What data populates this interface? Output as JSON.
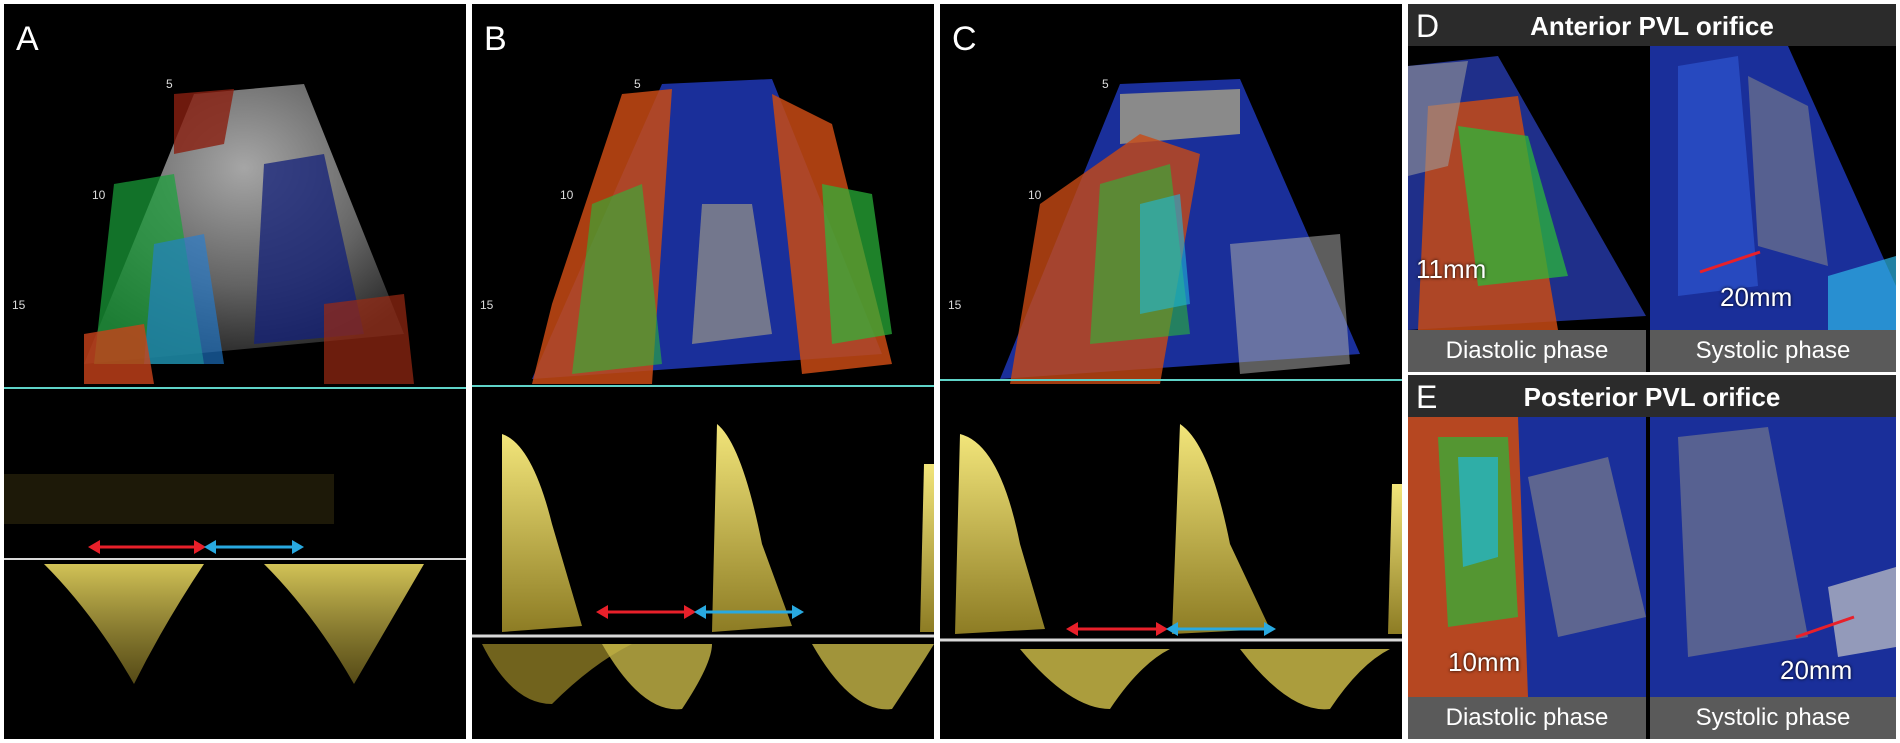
{
  "panels": {
    "a": {
      "label": "A"
    },
    "b": {
      "label": "B"
    },
    "c": {
      "label": "C"
    },
    "d": {
      "label": "D",
      "title": "Anterior PVL orifice",
      "left_phase": "Diastolic phase",
      "right_phase": "Systolic phase",
      "left_measure": "11mm",
      "right_measure": "20mm"
    },
    "e": {
      "label": "E",
      "title": "Posterior PVL orifice",
      "left_phase": "Diastolic phase",
      "right_phase": "Systolic phase",
      "left_measure": "10mm",
      "right_measure": "20mm"
    }
  },
  "depth_markers": [
    "5",
    "10",
    "15"
  ],
  "colors": {
    "red_arrow": "#e8202a",
    "blue_arrow": "#29a9e0",
    "doppler": "#e9d860",
    "baseline": "#5fd3c8"
  }
}
